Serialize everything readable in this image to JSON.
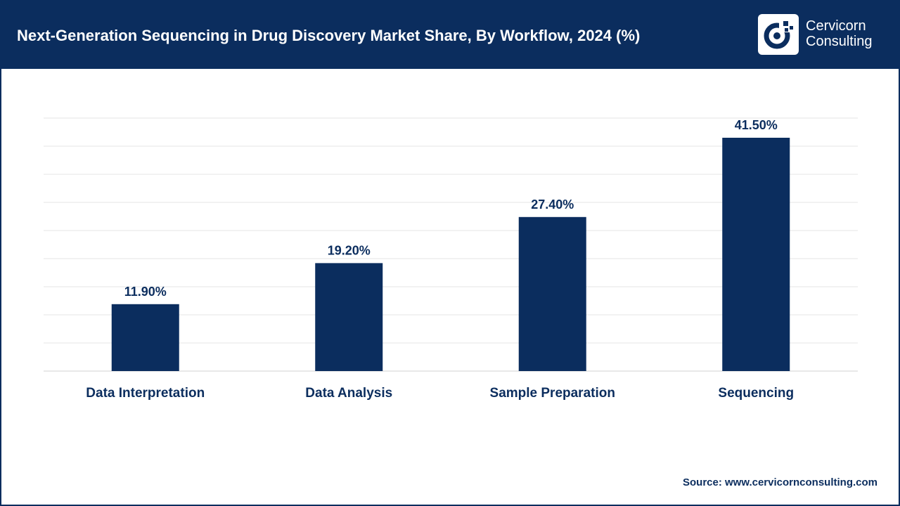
{
  "header": {
    "title": "Next-Generation Sequencing in Drug Discovery Market Share, By Workflow, 2024 (%)",
    "logo_line1": "Cervicorn",
    "logo_line2": "Consulting"
  },
  "colors": {
    "brand": "#0b2d5e",
    "bar": "#0b2d5e",
    "grid": "#e6e6e6"
  },
  "chart_data": {
    "type": "bar",
    "categories": [
      "Data Interpretation",
      "Data Analysis",
      "Sample Preparation",
      "Sequencing"
    ],
    "values": [
      11.9,
      19.2,
      27.4,
      41.5
    ],
    "data_labels": [
      "11.90%",
      "19.20%",
      "27.40%",
      "41.50%"
    ],
    "title": "Next-Generation Sequencing in Drug Discovery Market Share, By Workflow, 2024 (%)",
    "xlabel": "",
    "ylabel": "",
    "ylim": [
      0,
      45
    ],
    "grid": true,
    "legend": "none"
  },
  "footer": {
    "source": "Source: www.cervicornconsulting.com"
  }
}
